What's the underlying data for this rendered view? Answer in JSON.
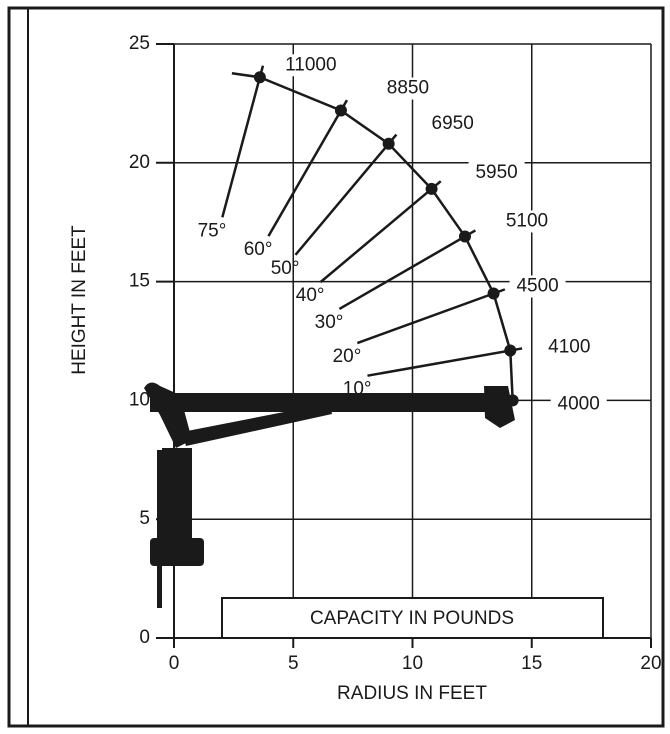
{
  "chart_data": {
    "type": "load-chart",
    "x_label": "RADIUS IN FEET",
    "y_label": "HEIGHT IN FEET",
    "legend_title": "CAPACITY IN POUNDS",
    "xlim": [
      0,
      20
    ],
    "ylim": [
      0,
      25
    ],
    "xticks": [
      0,
      5,
      10,
      15,
      20
    ],
    "yticks": [
      0,
      5,
      10,
      15,
      20,
      25
    ],
    "x": [
      3.6,
      7.0,
      9.0,
      10.8,
      12.2,
      13.4,
      14.1,
      14.2
    ],
    "values": [
      23.6,
      22.2,
      20.8,
      18.9,
      16.9,
      14.5,
      12.1,
      10.0
    ],
    "capacities": [
      11000,
      8850,
      6950,
      5950,
      5100,
      4500,
      4100,
      4000
    ],
    "angles": [
      {
        "value": 75,
        "label": "75°"
      },
      {
        "value": 60,
        "label": "60°"
      },
      {
        "value": 50,
        "label": "50°"
      },
      {
        "value": 40,
        "label": "40°"
      },
      {
        "value": 30,
        "label": "30°"
      },
      {
        "value": 20,
        "label": "20°"
      },
      {
        "value": 10,
        "label": "10°"
      },
      null
    ],
    "color": "#1a1a1a",
    "grid": true
  }
}
